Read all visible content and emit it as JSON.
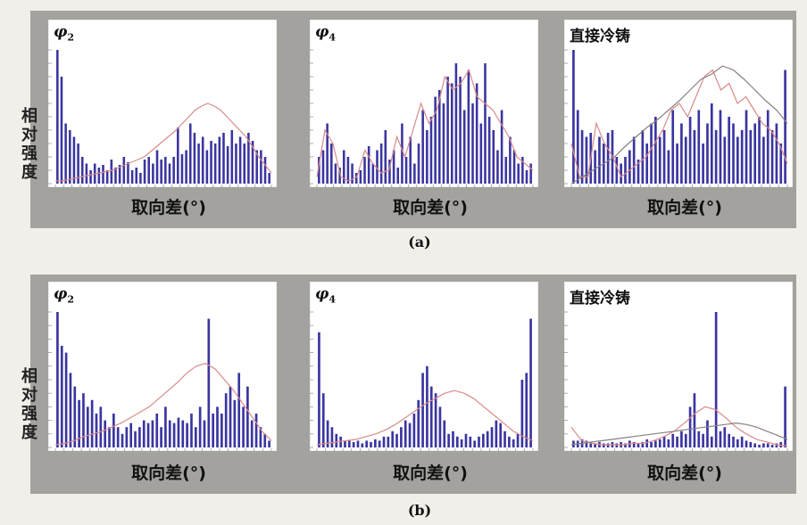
{
  "figure": {
    "ylabel": "相对强度",
    "xlabel": "取向差(°)",
    "subfig_labels": [
      "(a)",
      "(b)"
    ]
  },
  "colors": {
    "bar": "#3a35a0",
    "fit_line": "#d98a8a",
    "ref_line": "#8a7f80",
    "frame": "#a3a29f",
    "plot_bg": "#ffffff"
  },
  "chart_data": [
    {
      "type": "bar",
      "group": "(a)",
      "panel_label": "φ2",
      "panel_label_sub": "2",
      "xlabel": "取向差(°)",
      "ylim": [
        0,
        100
      ],
      "values": [
        100,
        80,
        45,
        40,
        35,
        30,
        20,
        15,
        10,
        15,
        12,
        14,
        10,
        18,
        12,
        14,
        20,
        16,
        10,
        12,
        8,
        18,
        20,
        15,
        25,
        18,
        20,
        15,
        20,
        42,
        22,
        25,
        45,
        38,
        30,
        35,
        25,
        32,
        30,
        35,
        38,
        28,
        40,
        30,
        35,
        30,
        38,
        32,
        25,
        25,
        20,
        8
      ],
      "series": [
        {
          "name": "",
          "type": "line",
          "values": [
            2,
            2,
            3,
            4,
            5,
            6,
            7,
            8,
            9,
            10,
            12,
            14,
            16,
            18,
            20,
            24,
            28,
            32,
            36,
            40,
            45,
            50,
            55,
            58,
            60,
            58,
            55,
            50,
            45,
            40,
            35,
            28,
            20,
            14,
            8
          ]
        }
      ]
    },
    {
      "type": "bar",
      "group": "(a)",
      "panel_label": "φ4",
      "panel_label_sub": "4",
      "xlabel": "取向差(°)",
      "ylim": [
        0,
        100
      ],
      "values": [
        20,
        25,
        45,
        30,
        15,
        12,
        25,
        20,
        15,
        8,
        10,
        20,
        28,
        15,
        25,
        30,
        40,
        18,
        25,
        12,
        45,
        20,
        35,
        15,
        30,
        55,
        40,
        50,
        65,
        70,
        60,
        80,
        75,
        90,
        80,
        55,
        85,
        60,
        75,
        45,
        90,
        50,
        40,
        25,
        55,
        20,
        35,
        25,
        15,
        20,
        10,
        15
      ],
      "series": [
        {
          "name": "",
          "type": "line",
          "values": [
            5,
            40,
            30,
            5,
            2,
            5,
            25,
            15,
            8,
            10,
            35,
            20,
            40,
            60,
            45,
            55,
            80,
            70,
            75,
            85,
            65,
            60,
            55,
            45,
            35,
            20,
            15,
            10
          ]
        }
      ]
    },
    {
      "type": "bar",
      "group": "(a)",
      "panel_label": "直接冷铸",
      "panel_label_sub": "",
      "xlabel": "取向差(°)",
      "ylim": [
        0,
        100
      ],
      "values": [
        100,
        55,
        40,
        35,
        38,
        25,
        35,
        30,
        38,
        40,
        20,
        15,
        20,
        25,
        35,
        18,
        40,
        30,
        45,
        50,
        35,
        40,
        25,
        55,
        30,
        45,
        35,
        50,
        40,
        55,
        30,
        45,
        60,
        40,
        55,
        35,
        50,
        45,
        35,
        40,
        55,
        40,
        45,
        50,
        35,
        55,
        40,
        45,
        30,
        85
      ],
      "series": [
        {
          "name": "",
          "type": "line",
          "values": [
            30,
            5,
            5,
            45,
            30,
            20,
            5,
            10,
            15,
            20,
            30,
            40,
            55,
            60,
            50,
            65,
            80,
            85,
            70,
            75,
            60,
            65,
            55,
            45,
            40,
            30,
            15
          ]
        },
        {
          "name": "",
          "type": "line",
          "values": [
            0,
            5,
            10,
            15,
            20,
            28,
            35,
            42,
            48,
            55,
            62,
            70,
            78,
            82,
            88,
            85,
            78,
            70,
            62,
            55,
            45
          ]
        }
      ]
    },
    {
      "type": "bar",
      "group": "(b)",
      "panel_label": "φ2",
      "panel_label_sub": "2",
      "xlabel": "取向差(°)",
      "ylim": [
        0,
        100
      ],
      "values": [
        100,
        75,
        70,
        55,
        45,
        35,
        40,
        30,
        35,
        25,
        30,
        20,
        15,
        25,
        15,
        10,
        15,
        18,
        12,
        15,
        20,
        18,
        20,
        25,
        15,
        30,
        20,
        18,
        22,
        20,
        18,
        25,
        15,
        30,
        20,
        95,
        25,
        30,
        25,
        40,
        45,
        35,
        55,
        30,
        45,
        20,
        25,
        15,
        10,
        5
      ],
      "series": [
        {
          "name": "",
          "type": "line",
          "values": [
            2,
            3,
            5,
            8,
            10,
            12,
            15,
            18,
            22,
            26,
            30,
            36,
            42,
            48,
            55,
            60,
            62,
            58,
            50,
            42,
            32,
            22,
            12,
            5
          ]
        }
      ]
    },
    {
      "type": "bar",
      "group": "(b)",
      "panel_label": "φ4",
      "panel_label_sub": "4",
      "xlabel": "取向差(°)",
      "ylim": [
        0,
        100
      ],
      "values": [
        85,
        40,
        20,
        15,
        10,
        8,
        5,
        5,
        4,
        5,
        3,
        5,
        4,
        6,
        5,
        8,
        8,
        12,
        10,
        15,
        20,
        18,
        25,
        35,
        55,
        60,
        45,
        40,
        30,
        20,
        10,
        12,
        8,
        6,
        10,
        8,
        5,
        8,
        10,
        12,
        15,
        20,
        18,
        12,
        8,
        6,
        10,
        50,
        55,
        95
      ],
      "series": [
        {
          "name": "",
          "type": "line",
          "values": [
            2,
            3,
            4,
            5,
            6,
            8,
            10,
            13,
            17,
            22,
            27,
            32,
            36,
            40,
            42,
            40,
            36,
            30,
            24,
            18,
            12,
            8,
            5
          ]
        }
      ]
    },
    {
      "type": "bar",
      "group": "(b)",
      "panel_label": "直接冷铸",
      "panel_label_sub": "",
      "xlabel": "取向差(°)",
      "ylim": [
        0,
        100
      ],
      "values": [
        5,
        5,
        6,
        5,
        4,
        3,
        4,
        3,
        3,
        4,
        3,
        4,
        3,
        5,
        4,
        3,
        4,
        6,
        4,
        5,
        6,
        8,
        6,
        10,
        8,
        12,
        10,
        30,
        40,
        12,
        10,
        20,
        8,
        100,
        12,
        15,
        10,
        8,
        6,
        8,
        5,
        4,
        3,
        2,
        3,
        3,
        2,
        3,
        4,
        45
      ],
      "series": [
        {
          "name": "",
          "type": "line",
          "values": [
            15,
            5,
            3,
            2,
            2,
            2,
            3,
            3,
            5,
            8,
            12,
            18,
            25,
            30,
            28,
            22,
            15,
            10,
            6,
            4,
            2,
            1
          ]
        },
        {
          "name": "",
          "type": "line",
          "values": [
            2,
            3,
            4,
            5,
            6,
            7,
            8,
            9,
            10,
            11,
            12,
            13,
            14,
            15,
            16,
            17,
            18,
            17,
            15,
            12,
            9,
            6
          ]
        }
      ]
    }
  ]
}
